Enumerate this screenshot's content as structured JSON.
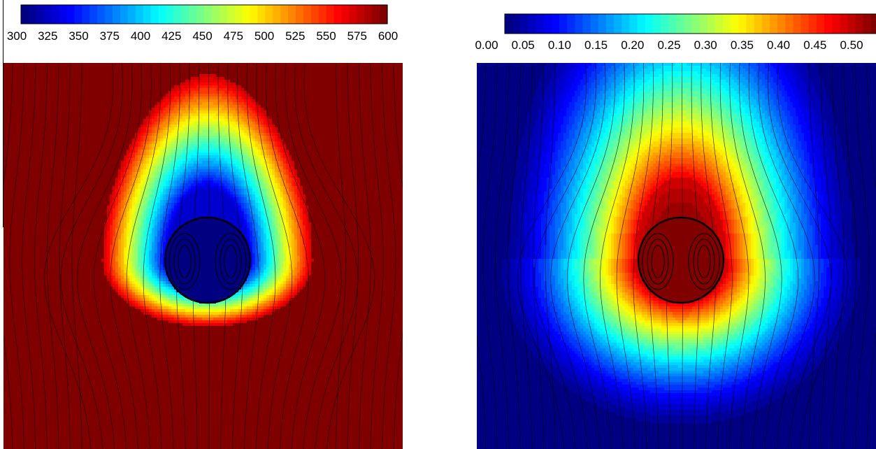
{
  "chart_data": [
    {
      "type": "heatmap",
      "title": "",
      "colormap": "jet",
      "colorbar": {
        "range": [
          300,
          600
        ],
        "ticks": [
          300,
          325,
          350,
          375,
          400,
          425,
          450,
          475,
          500,
          525,
          550,
          575,
          600
        ],
        "tick_labels": [
          "300",
          "325",
          "350",
          "375",
          "400",
          "425",
          "450",
          "475",
          "500",
          "525",
          "550",
          "575",
          "600"
        ],
        "levels": 48
      },
      "field": {
        "background_value": 600,
        "droplet_value": 300,
        "wake": "upstream (upward), teardrop-shaped cool region around the droplet",
        "streamlines": true,
        "internal_vortices": 2
      }
    },
    {
      "type": "heatmap",
      "title": "",
      "colormap": "jet",
      "colorbar": {
        "range": [
          0.0,
          0.5
        ],
        "ticks": [
          0.0,
          0.05,
          0.1,
          0.15,
          0.2,
          0.25,
          0.3,
          0.35,
          0.4,
          0.45,
          0.5
        ],
        "tick_labels": [
          "0.00",
          "0.05",
          "0.10",
          "0.15",
          "0.20",
          "0.25",
          "0.30",
          "0.35",
          "0.40",
          "0.45",
          "0.50"
        ],
        "levels": 48
      },
      "field": {
        "background_value": 0.0,
        "droplet_value": 0.5,
        "wake": "broad plume around the droplet, extending upward",
        "streamlines": true,
        "internal_vortices": 2
      }
    }
  ]
}
